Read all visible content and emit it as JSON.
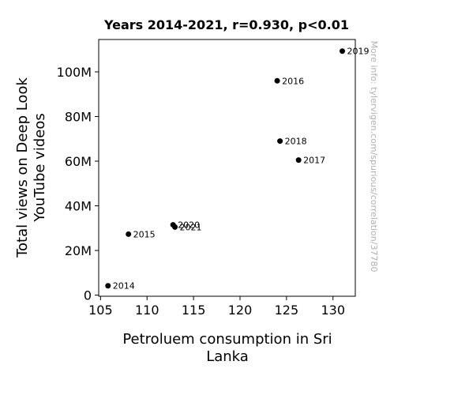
{
  "chart_data": {
    "type": "scatter",
    "title": "Years 2014-2021, r=0.930, p<0.01",
    "xlabel": [
      "Petroluem consumption in Sri",
      "Lanka"
    ],
    "ylabel": [
      "Total views on Deep Look",
      "YouTube videos"
    ],
    "xlim": [
      104.8,
      132.4
    ],
    "ylim": [
      -0.5,
      114.5
    ],
    "x_ticks": [
      105,
      110,
      115,
      120,
      125,
      130
    ],
    "y_ticks": [
      0,
      20,
      40,
      60,
      80,
      100
    ],
    "x_tick_labels": [
      "105",
      "110",
      "115",
      "120",
      "125",
      "130"
    ],
    "y_tick_labels": [
      "0",
      "20M",
      "40M",
      "60M",
      "80M",
      "100M"
    ],
    "grid": false,
    "points": [
      {
        "label": "2014",
        "x": 105.8,
        "y": 4.2
      },
      {
        "label": "2015",
        "x": 108.0,
        "y": 27.3
      },
      {
        "label": "2016",
        "x": 124.0,
        "y": 96.0
      },
      {
        "label": "2017",
        "x": 126.3,
        "y": 60.5
      },
      {
        "label": "2018",
        "x": 124.3,
        "y": 69.0
      },
      {
        "label": "2019",
        "x": 131.0,
        "y": 109.3
      },
      {
        "label": "2020",
        "x": 112.8,
        "y": 31.5
      },
      {
        "label": "2021",
        "x": 113.0,
        "y": 30.5
      }
    ],
    "watermark": "More info: tylervigen.com/spurious/correlation/37780",
    "marker_color": "#000000",
    "watermark_color": "#b0b0b0"
  }
}
